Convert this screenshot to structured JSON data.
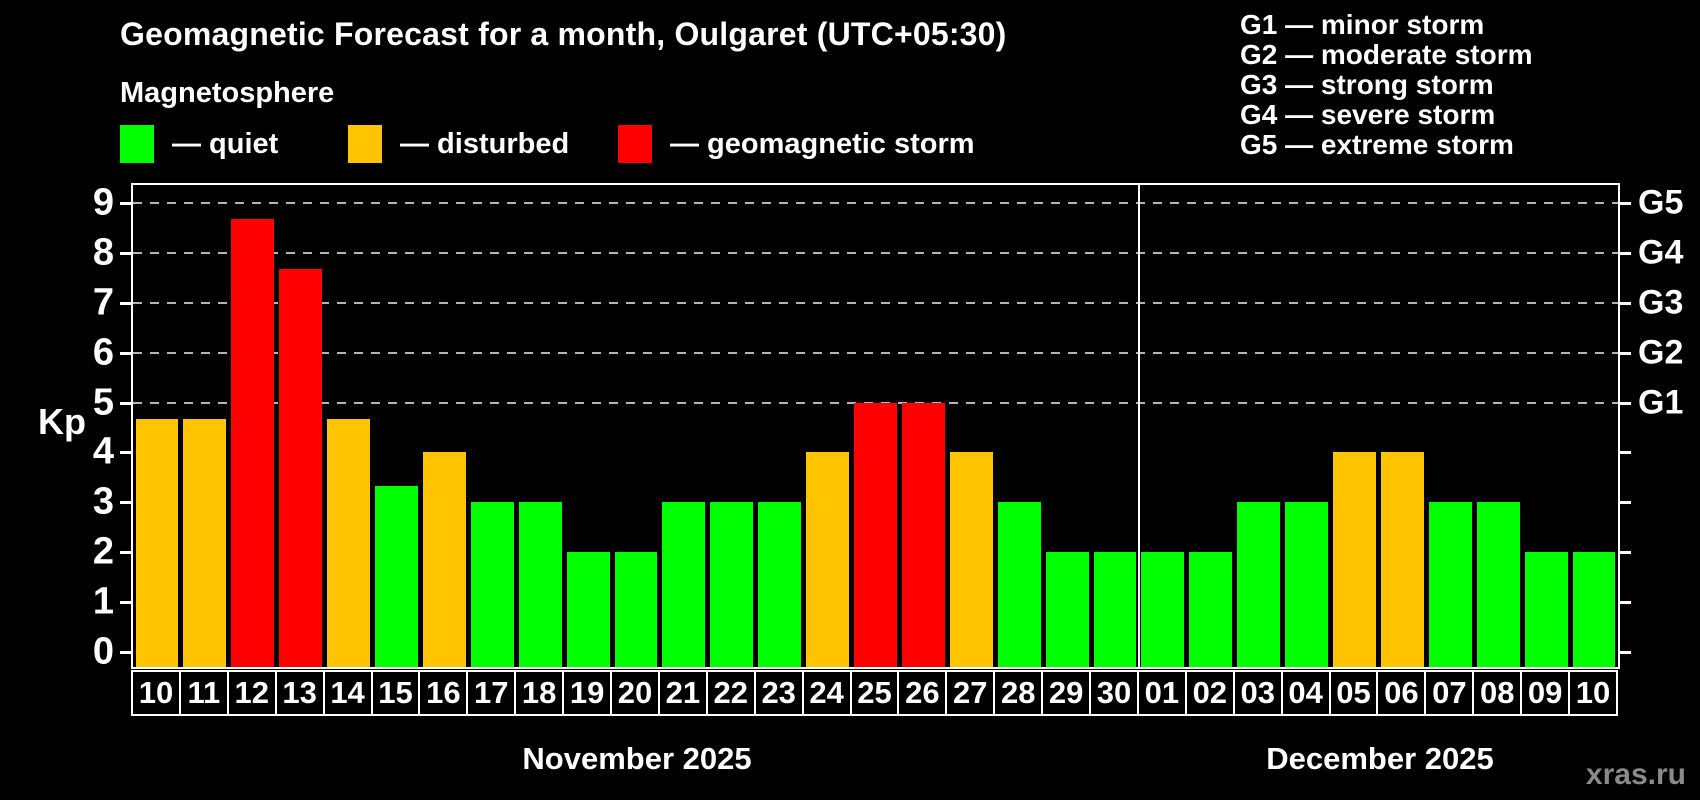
{
  "title": "Geomagnetic Forecast for a month, Oulgaret (UTC+05:30)",
  "subtitle": "Magnetosphere",
  "legend": {
    "items": [
      {
        "label": "— quiet",
        "status": "quiet"
      },
      {
        "label": "— disturbed",
        "status": "disturbed"
      },
      {
        "label": "— geomagnetic storm",
        "status": "storm"
      }
    ]
  },
  "g_legend": {
    "lines": [
      "G1 — minor storm",
      "G2 — moderate storm",
      "G3 — strong storm",
      "G4 — severe storm",
      "G5 — extreme storm"
    ]
  },
  "y_axis": {
    "label": "Kp"
  },
  "months": [
    {
      "name": "November 2025"
    },
    {
      "name": "December 2025"
    }
  ],
  "watermark": "xras.ru",
  "chart_data": {
    "type": "bar",
    "title": "Geomagnetic Forecast for a month, Oulgaret (UTC+05:30)",
    "subtitle": "Magnetosphere",
    "categories": [
      "10",
      "11",
      "12",
      "13",
      "14",
      "15",
      "16",
      "17",
      "18",
      "19",
      "20",
      "21",
      "22",
      "23",
      "24",
      "25",
      "26",
      "27",
      "28",
      "29",
      "30",
      "01",
      "02",
      "03",
      "04",
      "05",
      "06",
      "07",
      "08",
      "09",
      "10"
    ],
    "values": [
      4.67,
      4.67,
      8.67,
      7.67,
      4.67,
      3.33,
      4,
      3,
      3,
      2,
      2,
      3,
      3,
      3,
      4,
      5,
      5,
      4,
      3,
      2,
      2,
      2,
      2,
      3,
      3,
      4,
      4,
      3,
      3,
      2,
      2
    ],
    "statuses": [
      "disturbed",
      "disturbed",
      "storm",
      "storm",
      "disturbed",
      "quiet",
      "disturbed",
      "quiet",
      "quiet",
      "quiet",
      "quiet",
      "quiet",
      "quiet",
      "quiet",
      "disturbed",
      "storm",
      "storm",
      "disturbed",
      "quiet",
      "quiet",
      "quiet",
      "quiet",
      "quiet",
      "quiet",
      "quiet",
      "disturbed",
      "disturbed",
      "quiet",
      "quiet",
      "quiet",
      "quiet"
    ],
    "colors": {
      "quiet": "#00ff00",
      "disturbed": "#ffc400",
      "storm": "#ff0000"
    },
    "ylabel": "Kp",
    "ylim": [
      0,
      9.35
    ],
    "y_ticks": [
      0,
      1,
      2,
      3,
      4,
      5,
      6,
      7,
      8,
      9
    ],
    "gridline_levels": [
      5,
      6,
      7,
      8,
      9
    ],
    "right_axis_labels": [
      "G1",
      "G2",
      "G3",
      "G4",
      "G5"
    ],
    "right_axis_levels": [
      5,
      6,
      7,
      8,
      9
    ],
    "month_split_index": 21,
    "months": [
      "November 2025",
      "December 2025"
    ],
    "grid": "dashed-horizontal-upper-only",
    "legend_position": "top-left"
  }
}
